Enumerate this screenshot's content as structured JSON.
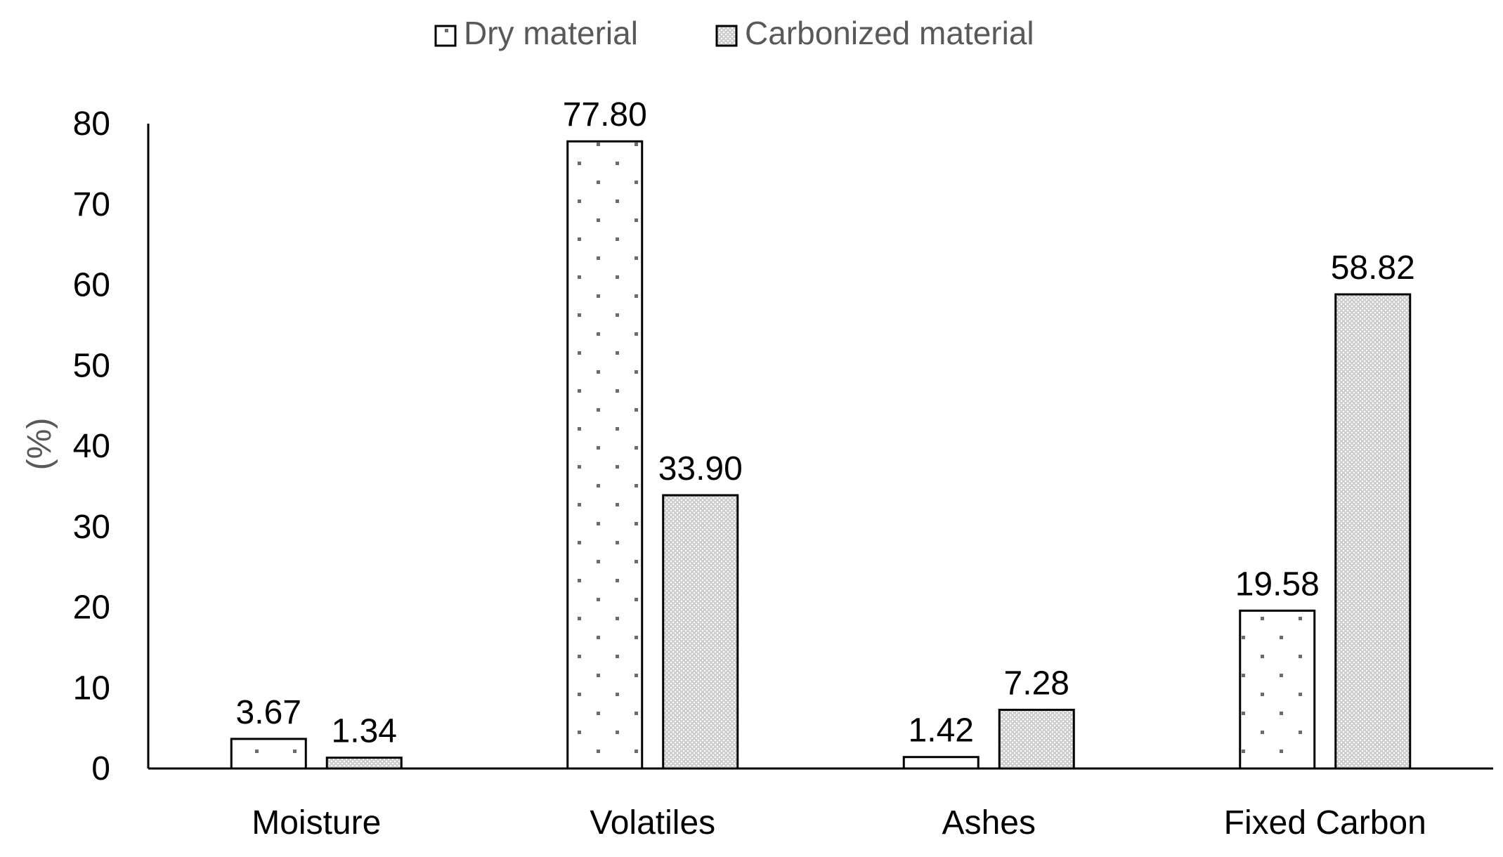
{
  "chart_data": {
    "type": "bar",
    "categories": [
      "Moisture",
      "Volatiles",
      "Ashes",
      "Fixed Carbon"
    ],
    "series": [
      {
        "name": "Dry material",
        "values": [
          3.67,
          77.8,
          1.42,
          19.58
        ],
        "labels": [
          "3.67",
          "77.80",
          "1.42",
          "19.58"
        ],
        "pattern": "sparse-dots"
      },
      {
        "name": "Carbonized material",
        "values": [
          1.34,
          33.9,
          7.28,
          58.82
        ],
        "labels": [
          "1.34",
          "33.90",
          "7.28",
          "58.82"
        ],
        "pattern": "dense-dots"
      }
    ],
    "ylabel": "(%)",
    "ylim": [
      0,
      80
    ],
    "yticks": [
      0,
      10,
      20,
      30,
      40,
      50,
      60,
      70,
      80
    ],
    "grid": false,
    "legend_position": "top-center",
    "colors": {
      "bar_stroke": "#000000",
      "bar_fill": "#ffffff",
      "axis": "#000000",
      "text": "#000000",
      "ylabel": "#595959",
      "dot_dark": "#666666",
      "dense_bg": "#d9d9d9"
    }
  }
}
